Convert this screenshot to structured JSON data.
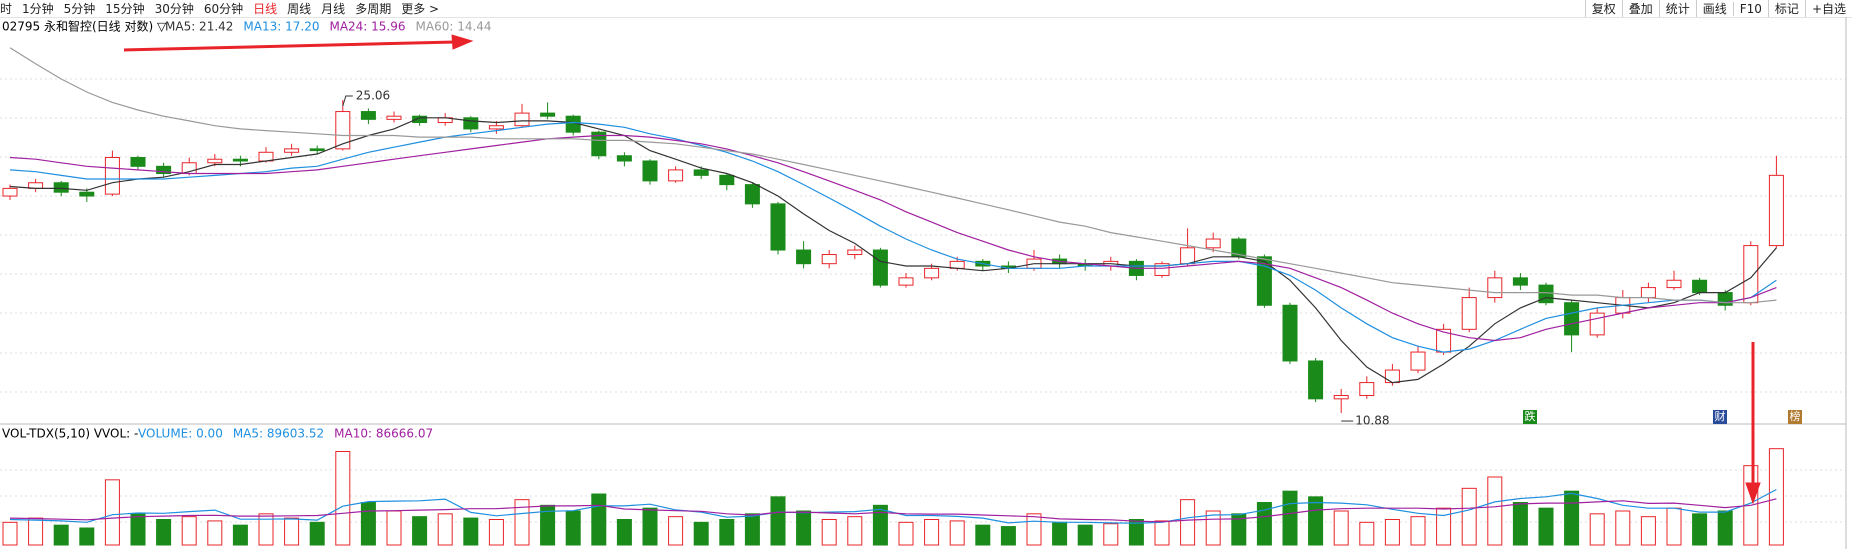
{
  "toolbar": {
    "periods": [
      {
        "label": "时",
        "active": false
      },
      {
        "label": "1分钟",
        "active": false
      },
      {
        "label": "5分钟",
        "active": false
      },
      {
        "label": "15分钟",
        "active": false
      },
      {
        "label": "30分钟",
        "active": false
      },
      {
        "label": "60分钟",
        "active": false
      },
      {
        "label": "日线",
        "active": true
      },
      {
        "label": "周线",
        "active": false
      },
      {
        "label": "月线",
        "active": false
      },
      {
        "label": "多周期",
        "active": false
      },
      {
        "label": "更多 >",
        "active": false
      }
    ],
    "tools": [
      "复权",
      "叠加",
      "统计",
      "画线",
      "F10",
      "标记",
      "+自选"
    ]
  },
  "badges": [
    "跌",
    "财",
    "榜"
  ],
  "chart_data": [
    {
      "type": "candlestick",
      "title": "02795 永和智控(日线 对数) ▽",
      "log_scale": true,
      "ylim": [
        10.68,
        29.8
      ],
      "up_color": "#e8242a",
      "down_color": "#1a8a1a",
      "annotations": [
        "25.06",
        "10.88"
      ],
      "candles": [
        [
          19.4,
          20.0,
          19.2,
          19.8
        ],
        [
          19.8,
          20.3,
          19.6,
          20.1
        ],
        [
          20.1,
          20.2,
          19.4,
          19.6
        ],
        [
          19.6,
          19.8,
          19.1,
          19.4
        ],
        [
          19.5,
          21.9,
          19.4,
          21.5
        ],
        [
          21.5,
          21.6,
          20.8,
          21.0
        ],
        [
          21.0,
          21.2,
          20.4,
          20.6
        ],
        [
          20.6,
          21.5,
          20.5,
          21.2
        ],
        [
          21.2,
          21.7,
          21.0,
          21.4
        ],
        [
          21.4,
          21.6,
          21.0,
          21.3
        ],
        [
          21.3,
          22.1,
          21.2,
          21.8
        ],
        [
          21.8,
          22.3,
          21.6,
          22.0
        ],
        [
          22.0,
          22.2,
          21.7,
          21.9
        ],
        [
          22.0,
          25.06,
          21.9,
          24.3
        ],
        [
          24.3,
          24.5,
          23.5,
          23.8
        ],
        [
          23.8,
          24.3,
          23.6,
          24.0
        ],
        [
          24.0,
          24.1,
          23.4,
          23.6
        ],
        [
          23.6,
          24.2,
          23.4,
          23.9
        ],
        [
          23.9,
          24.0,
          23.0,
          23.2
        ],
        [
          23.2,
          23.7,
          22.9,
          23.4
        ],
        [
          23.4,
          24.8,
          23.3,
          24.2
        ],
        [
          24.2,
          24.9,
          23.8,
          24.0
        ],
        [
          24.0,
          24.1,
          22.8,
          23.0
        ],
        [
          23.0,
          23.1,
          21.4,
          21.6
        ],
        [
          21.6,
          21.8,
          21.0,
          21.3
        ],
        [
          21.3,
          21.4,
          20.0,
          20.2
        ],
        [
          20.2,
          21.0,
          20.1,
          20.8
        ],
        [
          20.8,
          21.0,
          20.3,
          20.5
        ],
        [
          20.5,
          20.6,
          19.7,
          20.0
        ],
        [
          20.0,
          20.1,
          18.8,
          19.0
        ],
        [
          19.0,
          19.1,
          16.6,
          16.8
        ],
        [
          16.8,
          17.2,
          16.0,
          16.2
        ],
        [
          16.2,
          16.8,
          16.0,
          16.6
        ],
        [
          16.6,
          17.0,
          16.4,
          16.8
        ],
        [
          16.8,
          16.9,
          15.2,
          15.3
        ],
        [
          15.3,
          15.8,
          15.2,
          15.6
        ],
        [
          15.6,
          16.2,
          15.5,
          16.0
        ],
        [
          16.0,
          16.5,
          15.9,
          16.3
        ],
        [
          16.3,
          16.4,
          15.9,
          16.1
        ],
        [
          16.1,
          16.3,
          15.8,
          16.0
        ],
        [
          16.0,
          16.8,
          15.9,
          16.4
        ],
        [
          16.4,
          16.6,
          16.0,
          16.2
        ],
        [
          16.2,
          16.4,
          15.9,
          16.1
        ],
        [
          16.1,
          16.5,
          15.9,
          16.3
        ],
        [
          16.3,
          16.4,
          15.5,
          15.7
        ],
        [
          15.7,
          16.3,
          15.6,
          16.2
        ],
        [
          16.2,
          17.8,
          16.1,
          16.9
        ],
        [
          16.9,
          17.6,
          16.7,
          17.3
        ],
        [
          17.3,
          17.4,
          16.4,
          16.5
        ],
        [
          16.5,
          16.6,
          14.4,
          14.5
        ],
        [
          14.5,
          14.6,
          12.4,
          12.5
        ],
        [
          12.5,
          12.6,
          11.2,
          11.3
        ],
        [
          11.3,
          11.6,
          10.88,
          11.4
        ],
        [
          11.4,
          12.0,
          11.3,
          11.8
        ],
        [
          11.8,
          12.4,
          11.7,
          12.2
        ],
        [
          12.2,
          13.0,
          12.1,
          12.8
        ],
        [
          12.8,
          13.8,
          12.7,
          13.6
        ],
        [
          13.6,
          15.2,
          13.5,
          14.8
        ],
        [
          14.8,
          15.9,
          14.6,
          15.6
        ],
        [
          15.6,
          15.8,
          15.1,
          15.3
        ],
        [
          15.3,
          15.4,
          14.5,
          14.6
        ],
        [
          14.6,
          14.7,
          12.8,
          13.4
        ],
        [
          13.4,
          14.4,
          13.3,
          14.2
        ],
        [
          14.2,
          15.1,
          14.0,
          14.8
        ],
        [
          14.8,
          15.4,
          14.6,
          15.2
        ],
        [
          15.2,
          15.9,
          15.1,
          15.5
        ],
        [
          15.5,
          15.6,
          14.9,
          15.0
        ],
        [
          15.0,
          15.1,
          14.3,
          14.5
        ],
        [
          14.6,
          17.2,
          14.5,
          17.0
        ],
        [
          17.0,
          21.6,
          16.9,
          20.5
        ]
      ],
      "series": [
        {
          "name": "MA5: 21.42",
          "color": "#333333",
          "values": [
            19.9,
            19.8,
            19.8,
            19.7,
            20.1,
            20.3,
            20.4,
            20.7,
            21.1,
            21.1,
            21.3,
            21.5,
            21.7,
            22.3,
            22.8,
            23.2,
            23.9,
            23.9,
            23.7,
            23.6,
            23.7,
            23.7,
            23.6,
            23.2,
            22.8,
            21.9,
            21.4,
            20.9,
            20.6,
            20.1,
            19.4,
            18.5,
            17.7,
            17.1,
            16.3,
            16.1,
            16.1,
            16.0,
            15.9,
            16.0,
            16.2,
            16.2,
            16.2,
            16.2,
            16.1,
            16.1,
            16.2,
            16.5,
            16.5,
            16.3,
            15.5,
            14.4,
            13.2,
            12.3,
            11.8,
            11.9,
            12.4,
            13.0,
            13.8,
            14.4,
            14.8,
            14.7,
            14.6,
            14.5,
            14.4,
            14.6,
            15.0,
            15.0,
            15.6,
            16.9
          ]
        },
        {
          "name": "MA13: 17.20",
          "color": "#1f8fe0",
          "values": [
            20.8,
            20.7,
            20.5,
            20.3,
            20.3,
            20.3,
            20.3,
            20.4,
            20.5,
            20.6,
            20.7,
            20.9,
            21.0,
            21.4,
            21.8,
            22.1,
            22.4,
            22.7,
            22.9,
            23.1,
            23.3,
            23.5,
            23.6,
            23.5,
            23.3,
            22.9,
            22.6,
            22.2,
            21.8,
            21.3,
            20.7,
            20.0,
            19.3,
            18.6,
            17.9,
            17.3,
            16.8,
            16.4,
            16.2,
            16.0,
            16.0,
            16.0,
            16.1,
            16.1,
            16.1,
            16.1,
            16.2,
            16.3,
            16.3,
            16.1,
            15.7,
            15.1,
            14.4,
            13.8,
            13.3,
            13.0,
            12.8,
            12.9,
            13.2,
            13.6,
            14.0,
            14.2,
            14.4,
            14.5,
            14.6,
            14.7,
            14.7,
            14.6,
            14.8,
            15.5
          ]
        },
        {
          "name": "MA24: 15.96",
          "color": "#a020a0",
          "values": [
            21.5,
            21.4,
            21.2,
            21.0,
            20.9,
            20.8,
            20.7,
            20.6,
            20.6,
            20.6,
            20.6,
            20.7,
            20.8,
            21.0,
            21.2,
            21.4,
            21.6,
            21.8,
            22.0,
            22.2,
            22.4,
            22.6,
            22.7,
            22.8,
            22.8,
            22.7,
            22.5,
            22.3,
            22.0,
            21.6,
            21.2,
            20.7,
            20.2,
            19.7,
            19.2,
            18.6,
            18.1,
            17.6,
            17.2,
            16.8,
            16.5,
            16.3,
            16.2,
            16.1,
            16.0,
            16.0,
            16.1,
            16.2,
            16.3,
            16.2,
            16.0,
            15.6,
            15.2,
            14.7,
            14.2,
            13.8,
            13.5,
            13.3,
            13.2,
            13.3,
            13.6,
            13.8,
            14.0,
            14.2,
            14.4,
            14.5,
            14.6,
            14.6,
            14.8,
            15.2
          ]
        },
        {
          "name": "MA60: 14.44",
          "color": "#999999",
          "values": [
            28.8,
            27.6,
            26.5,
            25.6,
            24.9,
            24.4,
            24.0,
            23.7,
            23.4,
            23.2,
            23.1,
            23.0,
            22.9,
            22.8,
            22.8,
            22.8,
            22.7,
            22.7,
            22.7,
            22.6,
            22.6,
            22.6,
            22.6,
            22.5,
            22.5,
            22.4,
            22.3,
            22.1,
            21.9,
            21.7,
            21.4,
            21.1,
            20.8,
            20.5,
            20.2,
            19.9,
            19.6,
            19.3,
            19.0,
            18.7,
            18.4,
            18.1,
            17.9,
            17.6,
            17.4,
            17.2,
            17.0,
            16.8,
            16.6,
            16.4,
            16.2,
            16.0,
            15.8,
            15.6,
            15.4,
            15.3,
            15.2,
            15.1,
            15.0,
            15.0,
            15.0,
            14.9,
            14.9,
            14.8,
            14.8,
            14.7,
            14.7,
            14.6,
            14.6,
            14.7
          ]
        }
      ]
    },
    {
      "type": "bar",
      "title": "VOL-TDX(5,10) VVOL: -",
      "ylim": [
        0,
        360000
      ],
      "series": [
        {
          "name": "VOLUME: 0.00",
          "color": "#1f8fe0",
          "values": [
            80000,
            95000,
            70000,
            60000,
            230000,
            110000,
            90000,
            100000,
            85000,
            70000,
            110000,
            95000,
            80000,
            330000,
            150000,
            120000,
            100000,
            110000,
            95000,
            90000,
            160000,
            140000,
            120000,
            180000,
            90000,
            130000,
            100000,
            80000,
            90000,
            110000,
            170000,
            120000,
            90000,
            100000,
            140000,
            80000,
            90000,
            85000,
            70000,
            65000,
            110000,
            80000,
            70000,
            75000,
            90000,
            85000,
            160000,
            120000,
            110000,
            150000,
            190000,
            170000,
            120000,
            80000,
            90000,
            100000,
            130000,
            200000,
            240000,
            150000,
            130000,
            190000,
            110000,
            120000,
            100000,
            130000,
            110000,
            120000,
            280000,
            340000
          ]
        },
        {
          "name": "MA5: 89603.52",
          "color": "#1f8fe0",
          "values": [
            90000,
            88000,
            85000,
            80000,
            107000,
            113000,
            112000,
            118000,
            123000,
            91000,
            91000,
            92000,
            88000,
            137000,
            153000,
            155000,
            156000,
            162000,
            115000,
            103000,
            111000,
            119000,
            121000,
            138000,
            138000,
            144000,
            124000,
            116000,
            98000,
            102000,
            116000,
            114000,
            116000,
            118000,
            126000,
            104000,
            104000,
            101000,
            95000,
            78000,
            84000,
            80000,
            80000,
            78000,
            77000,
            80000,
            96000,
            106000,
            107000,
            123000,
            146000,
            150000,
            148000,
            142000,
            126000,
            112000,
            104000,
            124000,
            152000,
            164000,
            170000,
            182000,
            164000,
            140000,
            130000,
            130000,
            116000,
            116000,
            148000,
            196000
          ]
        },
        {
          "name": "MA10: 86666.07",
          "color": "#a020a0",
          "values": [
            95000,
            93000,
            91000,
            89000,
            95000,
            100000,
            102000,
            104000,
            105000,
            102000,
            102000,
            103000,
            104000,
            112000,
            120000,
            121000,
            123000,
            125000,
            128000,
            128000,
            133000,
            138000,
            138000,
            140000,
            127000,
            124000,
            121000,
            119000,
            110000,
            106000,
            115000,
            116000,
            113000,
            110000,
            115000,
            110000,
            109000,
            109000,
            106000,
            103000,
            100000,
            92000,
            90000,
            89000,
            84000,
            82000,
            88000,
            91000,
            92000,
            100000,
            111000,
            123000,
            128000,
            130000,
            130000,
            130000,
            127000,
            130000,
            135000,
            145000,
            148000,
            148000,
            152000,
            156000,
            147000,
            148000,
            140000,
            132000,
            140000,
            163000
          ]
        }
      ]
    }
  ]
}
